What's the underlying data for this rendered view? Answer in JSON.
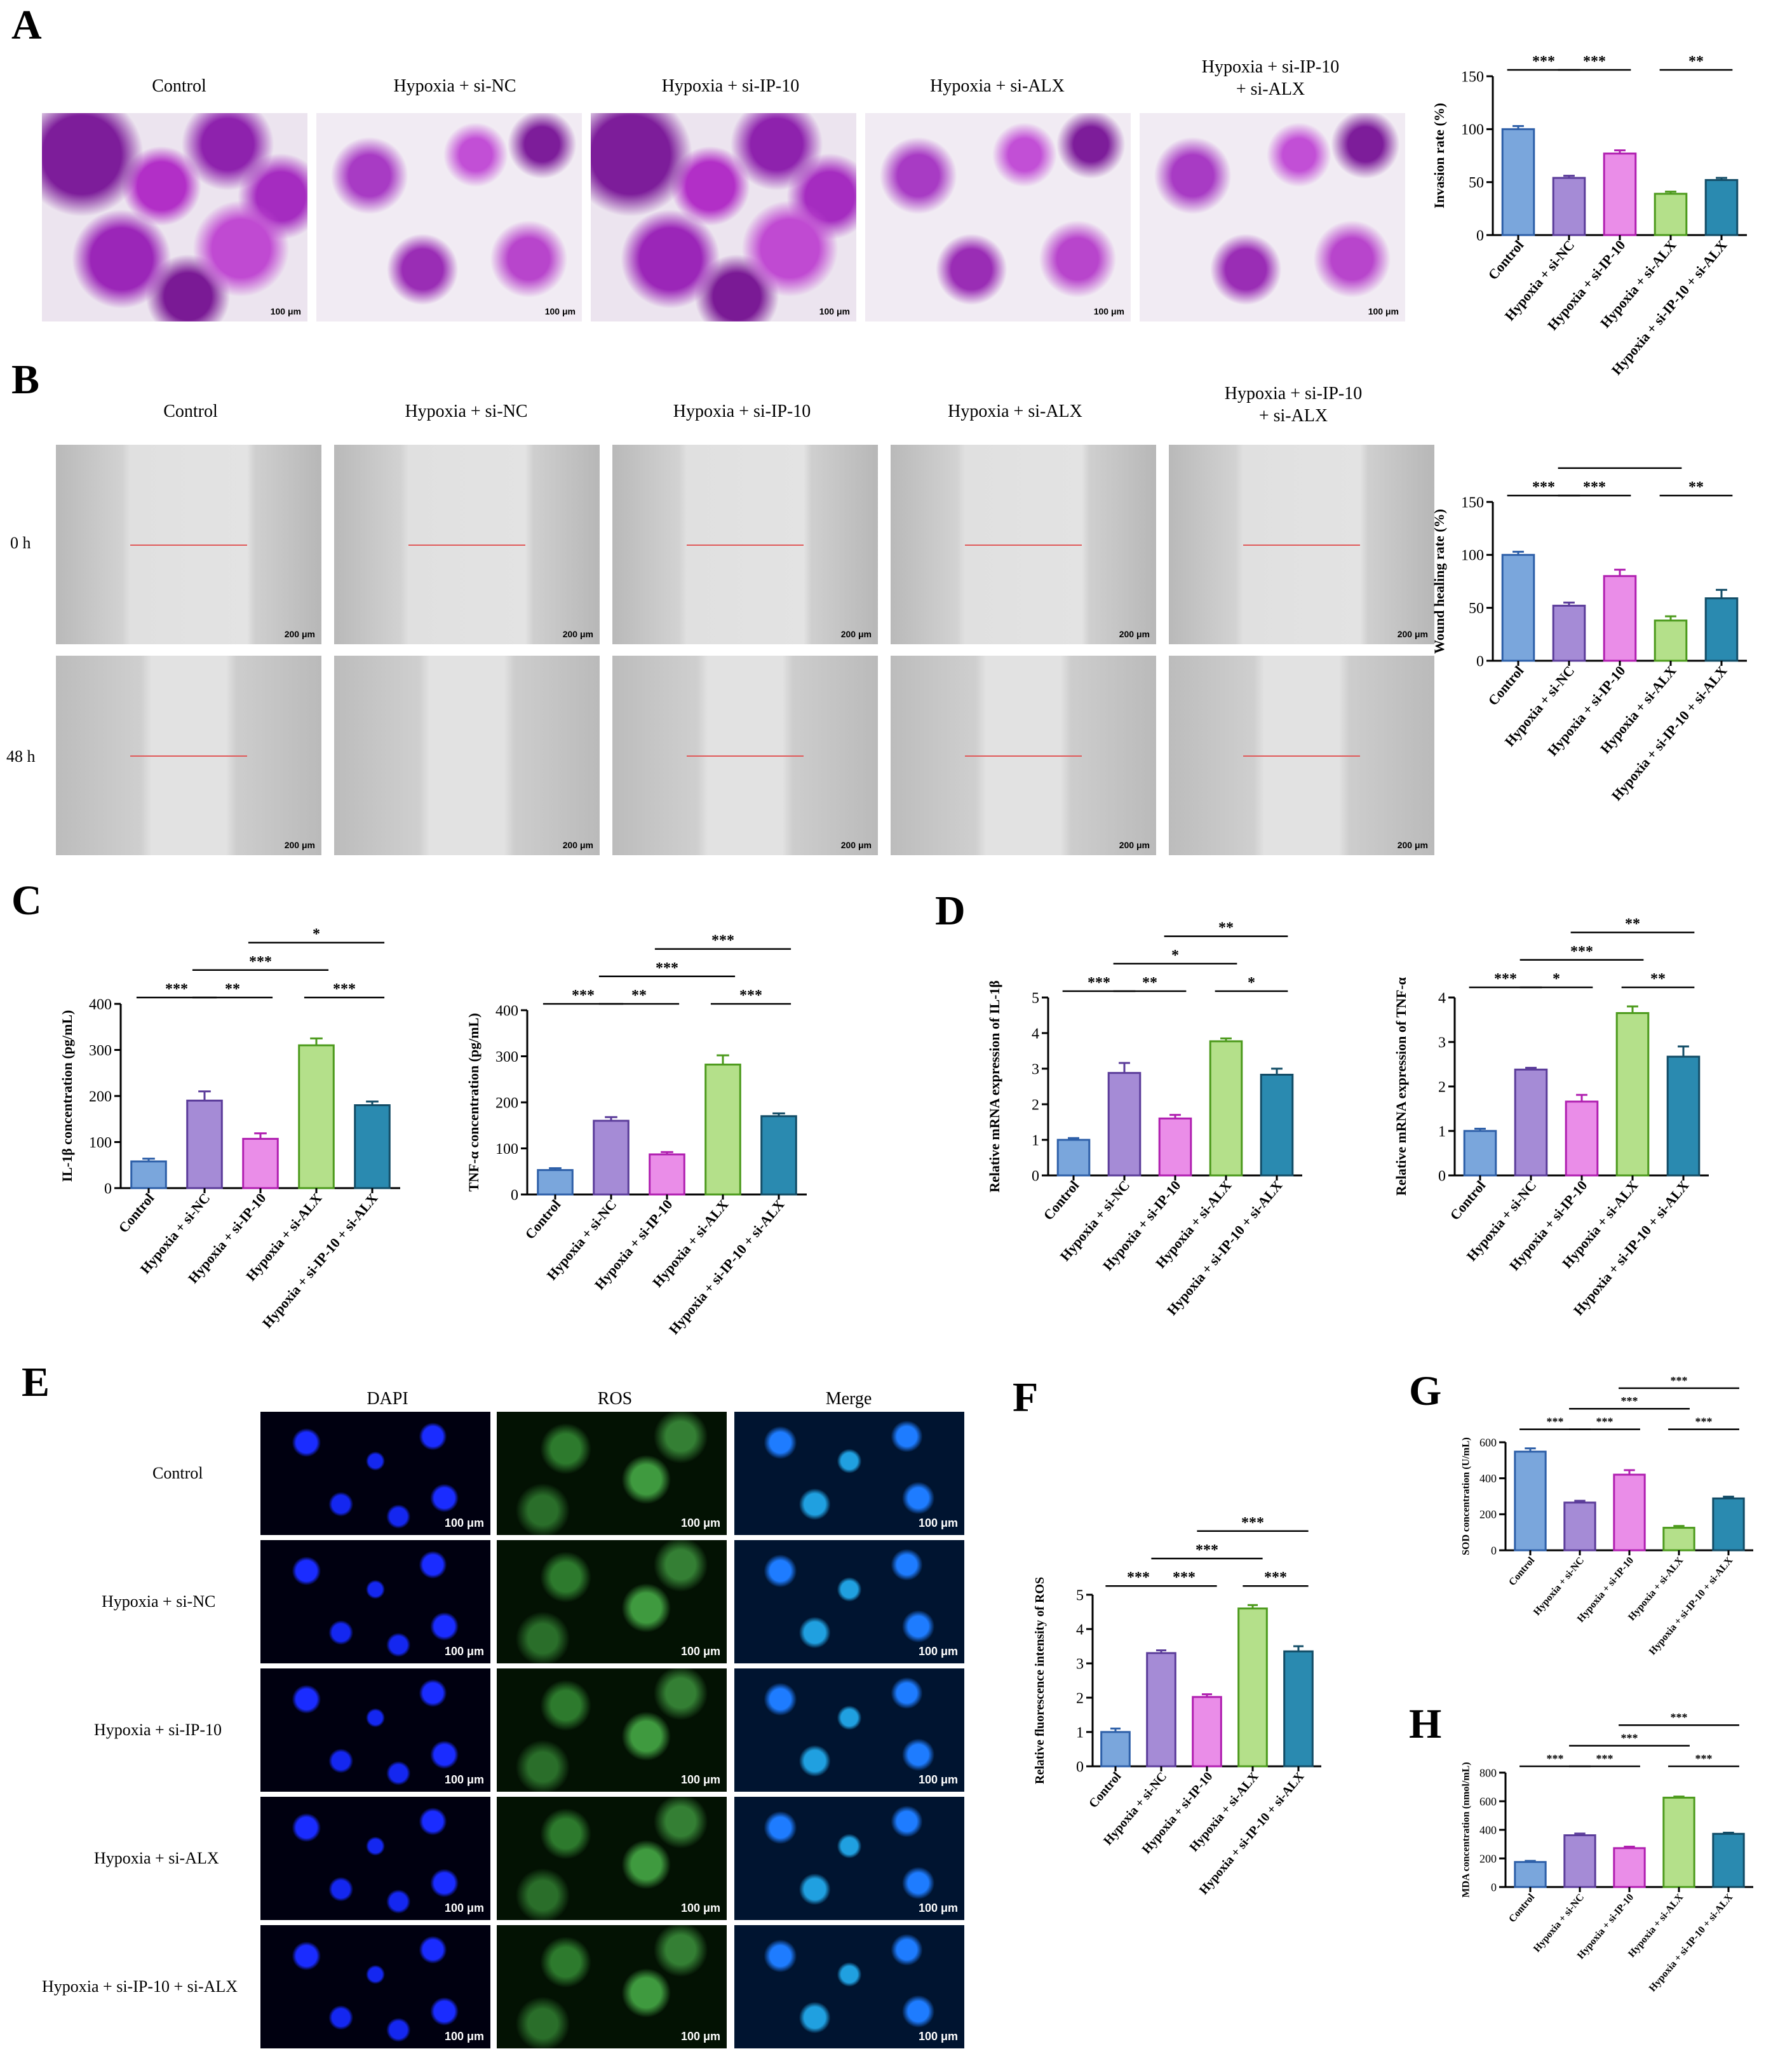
{
  "panels": {
    "A": "A",
    "B": "B",
    "C": "C",
    "D": "D",
    "E": "E",
    "F": "F",
    "G": "G",
    "H": "H"
  },
  "groups": [
    "Control",
    "Hypoxia + si-NC",
    "Hypoxia + si-IP-10",
    "Hypoxia + si-ALX",
    "Hypoxia + si-IP-10\n+ si-ALX"
  ],
  "groups_e": [
    "Control",
    "Hypoxia + si-NC",
    "Hypoxia + si-IP-10",
    "Hypoxia + si-ALX",
    "Hypoxia + si-IP-10 + si-ALX"
  ],
  "scale": {
    "a": "100 μm",
    "b": "200 μm",
    "e": "100 μm"
  },
  "rows_b": [
    "0 h",
    "48 h"
  ],
  "channels_e": [
    "DAPI",
    "ROS",
    "Merge"
  ],
  "colors": {
    "c1": "#7aa6dc",
    "c2": "#a58bd6",
    "c3": "#ea8de8",
    "c4": "#b4e08a",
    "c5": "#2a8ab0",
    "s1": "#2d5fa8",
    "s2": "#5b3c9a",
    "s3": "#b01fb0",
    "s4": "#4c9a1c",
    "s5": "#124c66"
  },
  "chart_data": [
    {
      "id": "A",
      "type": "bar",
      "categories": [
        "Control",
        "Hypoxia + si-NC",
        "Hypoxia + si-IP-10",
        "Hypoxia + si-ALX",
        "Hypoxia + si-IP-10 + si-ALX"
      ],
      "values": [
        100,
        54,
        77,
        39,
        52
      ],
      "errors": [
        3,
        2,
        3,
        2,
        2
      ],
      "ylabel": "Invasion rate (%)",
      "ylim": [
        0,
        150
      ],
      "yticks": [
        0,
        50,
        100,
        150
      ],
      "sig": [
        {
          "a": 0,
          "b": 1,
          "t": "***",
          "l": 0
        },
        {
          "a": 1,
          "b": 2,
          "t": "***",
          "l": 0
        },
        {
          "a": 3,
          "b": 4,
          "t": "**",
          "l": 0
        },
        {
          "a": 1,
          "b": 3,
          "t": "**",
          "l": 1
        },
        {
          "a": 2,
          "b": 4,
          "t": "***",
          "l": 2
        }
      ]
    },
    {
      "id": "B",
      "type": "bar",
      "categories": [
        "Control",
        "Hypoxia + si-NC",
        "Hypoxia + si-IP-10",
        "Hypoxia + si-ALX",
        "Hypoxia + si-IP-10 + si-ALX"
      ],
      "values": [
        100,
        52,
        80,
        38,
        59
      ],
      "errors": [
        3,
        3,
        6,
        4,
        8
      ],
      "ylabel": "Wound healing rate (%)",
      "ylim": [
        0,
        150
      ],
      "yticks": [
        0,
        50,
        100,
        150
      ],
      "sig": [
        {
          "a": 0,
          "b": 1,
          "t": "***",
          "l": 0
        },
        {
          "a": 1,
          "b": 2,
          "t": "***",
          "l": 0
        },
        {
          "a": 3,
          "b": 4,
          "t": "**",
          "l": 0
        },
        {
          "a": 1,
          "b": 3,
          "t": "*",
          "l": 1
        },
        {
          "a": 2,
          "b": 4,
          "t": "**",
          "l": 2
        }
      ]
    },
    {
      "id": "C1",
      "type": "bar",
      "categories": [
        "Control",
        "Hypoxia + si-NC",
        "Hypoxia + si-IP-10",
        "Hypoxia + si-ALX",
        "Hypoxia + si-IP-10 + si-ALX"
      ],
      "values": [
        58,
        190,
        107,
        310,
        180
      ],
      "errors": [
        6,
        20,
        12,
        15,
        8
      ],
      "ylabel": "IL-1β concentration (pg/mL)",
      "ylim": [
        0,
        400
      ],
      "yticks": [
        0,
        100,
        200,
        300,
        400
      ],
      "sig": [
        {
          "a": 0,
          "b": 1,
          "t": "***",
          "l": 0
        },
        {
          "a": 1,
          "b": 2,
          "t": "**",
          "l": 0
        },
        {
          "a": 3,
          "b": 4,
          "t": "***",
          "l": 0
        },
        {
          "a": 1,
          "b": 3,
          "t": "***",
          "l": 1
        },
        {
          "a": 2,
          "b": 4,
          "t": "*",
          "l": 2
        }
      ]
    },
    {
      "id": "C2",
      "type": "bar",
      "categories": [
        "Control",
        "Hypoxia + si-NC",
        "Hypoxia + si-IP-10",
        "Hypoxia + si-ALX",
        "Hypoxia + si-IP-10 + si-ALX"
      ],
      "values": [
        53,
        160,
        87,
        282,
        170
      ],
      "errors": [
        4,
        8,
        5,
        20,
        6
      ],
      "ylabel": "TNF-α concentration (pg/mL)",
      "ylim": [
        0,
        400
      ],
      "yticks": [
        0,
        100,
        200,
        300,
        400
      ],
      "sig": [
        {
          "a": 0,
          "b": 1,
          "t": "***",
          "l": 0
        },
        {
          "a": 1,
          "b": 2,
          "t": "**",
          "l": 0
        },
        {
          "a": 3,
          "b": 4,
          "t": "***",
          "l": 0
        },
        {
          "a": 1,
          "b": 3,
          "t": "***",
          "l": 1
        },
        {
          "a": 2,
          "b": 4,
          "t": "***",
          "l": 2
        }
      ]
    },
    {
      "id": "D1",
      "type": "bar",
      "categories": [
        "Control",
        "Hypoxia + si-NC",
        "Hypoxia + si-IP-10",
        "Hypoxia + si-ALX",
        "Hypoxia + si-IP-10 + si-ALX"
      ],
      "values": [
        1.0,
        2.88,
        1.6,
        3.77,
        2.83
      ],
      "errors": [
        0.05,
        0.28,
        0.1,
        0.08,
        0.17
      ],
      "ylabel": "Relative mRNA expression of IL-1β",
      "ylim": [
        0,
        5
      ],
      "yticks": [
        0,
        1,
        2,
        3,
        4,
        5
      ],
      "sig": [
        {
          "a": 0,
          "b": 1,
          "t": "***",
          "l": 0
        },
        {
          "a": 1,
          "b": 2,
          "t": "**",
          "l": 0
        },
        {
          "a": 3,
          "b": 4,
          "t": "*",
          "l": 0
        },
        {
          "a": 1,
          "b": 3,
          "t": "*",
          "l": 1
        },
        {
          "a": 2,
          "b": 4,
          "t": "**",
          "l": 2
        }
      ]
    },
    {
      "id": "D2",
      "type": "bar",
      "categories": [
        "Control",
        "Hypoxia + si-NC",
        "Hypoxia + si-IP-10",
        "Hypoxia + si-ALX",
        "Hypoxia + si-IP-10 + si-ALX"
      ],
      "values": [
        1.0,
        2.38,
        1.66,
        3.65,
        2.67
      ],
      "errors": [
        0.05,
        0.04,
        0.15,
        0.15,
        0.23
      ],
      "ylabel": "Relative mRNA expression of TNF-α",
      "ylim": [
        0,
        4
      ],
      "yticks": [
        0,
        1,
        2,
        3,
        4
      ],
      "sig": [
        {
          "a": 0,
          "b": 1,
          "t": "***",
          "l": 0
        },
        {
          "a": 1,
          "b": 2,
          "t": "*",
          "l": 0
        },
        {
          "a": 3,
          "b": 4,
          "t": "**",
          "l": 0
        },
        {
          "a": 1,
          "b": 3,
          "t": "***",
          "l": 1
        },
        {
          "a": 2,
          "b": 4,
          "t": "**",
          "l": 2
        }
      ]
    },
    {
      "id": "F",
      "type": "bar",
      "categories": [
        "Control",
        "Hypoxia + si-NC",
        "Hypoxia + si-IP-10",
        "Hypoxia + si-ALX",
        "Hypoxia + si-IP-10 + si-ALX"
      ],
      "values": [
        1.0,
        3.3,
        2.02,
        4.6,
        3.35
      ],
      "errors": [
        0.1,
        0.08,
        0.08,
        0.1,
        0.15
      ],
      "ylabel": "Relative fluorescence intensity of ROS",
      "ylim": [
        0,
        5
      ],
      "yticks": [
        0,
        1,
        2,
        3,
        4,
        5
      ],
      "sig": [
        {
          "a": 0,
          "b": 1,
          "t": "***",
          "l": 0
        },
        {
          "a": 1,
          "b": 2,
          "t": "***",
          "l": 0
        },
        {
          "a": 3,
          "b": 4,
          "t": "***",
          "l": 0
        },
        {
          "a": 1,
          "b": 3,
          "t": "***",
          "l": 1
        },
        {
          "a": 2,
          "b": 4,
          "t": "***",
          "l": 2
        }
      ]
    },
    {
      "id": "G",
      "type": "bar",
      "categories": [
        "Control",
        "Hypoxia + si-NC",
        "Hypoxia + si-IP-10",
        "Hypoxia + si-ALX",
        "Hypoxia + si-IP-10 + si-ALX"
      ],
      "values": [
        548,
        265,
        420,
        125,
        288
      ],
      "errors": [
        18,
        10,
        25,
        10,
        10
      ],
      "ylabel": "SOD concentration (U/mL)",
      "ylim": [
        0,
        600
      ],
      "yticks": [
        0,
        200,
        400,
        600
      ],
      "sig": [
        {
          "a": 0,
          "b": 1,
          "t": "***",
          "l": 0
        },
        {
          "a": 1,
          "b": 2,
          "t": "***",
          "l": 0
        },
        {
          "a": 3,
          "b": 4,
          "t": "***",
          "l": 0
        },
        {
          "a": 1,
          "b": 3,
          "t": "***",
          "l": 1
        },
        {
          "a": 2,
          "b": 4,
          "t": "***",
          "l": 2
        }
      ]
    },
    {
      "id": "H",
      "type": "bar",
      "categories": [
        "Control",
        "Hypoxia + si-NC",
        "Hypoxia + si-IP-10",
        "Hypoxia + si-ALX",
        "Hypoxia + si-IP-10 + si-ALX"
      ],
      "values": [
        175,
        362,
        272,
        625,
        372
      ],
      "errors": [
        8,
        12,
        10,
        8,
        8
      ],
      "ylabel": "MDA concentration (nmol/mL)",
      "ylim": [
        0,
        800
      ],
      "yticks": [
        0,
        200,
        400,
        600,
        800
      ],
      "sig": [
        {
          "a": 0,
          "b": 1,
          "t": "***",
          "l": 0
        },
        {
          "a": 1,
          "b": 2,
          "t": "***",
          "l": 0
        },
        {
          "a": 3,
          "b": 4,
          "t": "***",
          "l": 0
        },
        {
          "a": 1,
          "b": 3,
          "t": "***",
          "l": 1
        },
        {
          "a": 2,
          "b": 4,
          "t": "***",
          "l": 2
        }
      ]
    }
  ]
}
